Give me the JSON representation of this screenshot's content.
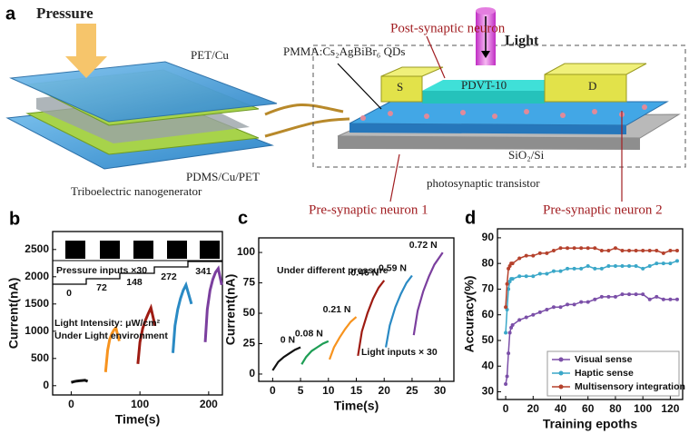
{
  "diagram": {
    "label": "a",
    "pressure": "Pressure",
    "top_layer": "PET/Cu",
    "bottom_layer": "PDMS/Cu/PET",
    "teng": "Triboelectric nanogenerator",
    "post_neuron": "Post-synaptic neuron",
    "light": "Light",
    "qds": "PMMA:Cs₂AgBiBr₆ QDs",
    "source": "S",
    "drain": "D",
    "channel": "PDVT-10",
    "substrate": "SiO₂/Si",
    "transistor": "photosynaptic transistor",
    "pre_neuron_1": "Pre-synaptic neuron 1",
    "pre_neuron_2": "Pre-synaptic neuron 2"
  },
  "chart_data": [
    {
      "type": "line",
      "label": "b",
      "xlabel": "Time(s)",
      "ylabel": "Current(nA)",
      "xlim": [
        -27,
        220
      ],
      "xticks": [
        0,
        100,
        200
      ],
      "ylim": [
        -170,
        2830
      ],
      "yticks": [
        0,
        500,
        1000,
        1500,
        2000,
        2500
      ],
      "annotations": [
        "Pressure inputs ×30",
        "Light Intensity: μW/cm²",
        "Under Light environment"
      ],
      "pressure_labels": [
        "0",
        "72",
        "148",
        "272",
        "341"
      ],
      "series": [
        {
          "color": "#111111",
          "x": [
            0,
            4,
            8,
            12,
            16,
            20,
            24
          ],
          "values": [
            60,
            75,
            85,
            90,
            95,
            100,
            80
          ]
        },
        {
          "color": "#f7931e",
          "x": [
            50,
            53,
            56,
            59,
            62,
            65,
            70
          ],
          "values": [
            250,
            650,
            850,
            950,
            1020,
            1060,
            820
          ]
        },
        {
          "color": "#9e1b12",
          "x": [
            97,
            100,
            104,
            108,
            112,
            116,
            122
          ],
          "values": [
            400,
            800,
            1050,
            1200,
            1320,
            1430,
            1100
          ]
        },
        {
          "color": "#2a8ac4",
          "x": [
            148,
            151,
            155,
            159,
            163,
            167,
            175
          ],
          "values": [
            600,
            1100,
            1400,
            1600,
            1750,
            1850,
            1500
          ]
        },
        {
          "color": "#7b3f9e",
          "x": [
            195,
            198,
            202,
            206,
            210,
            214,
            219
          ],
          "values": [
            800,
            1400,
            1750,
            1950,
            2080,
            2150,
            1850
          ]
        }
      ]
    },
    {
      "type": "line",
      "label": "c",
      "xlabel": "Time(s)",
      "ylabel": "Current(nA)",
      "xlim": [
        -2.5,
        32.5
      ],
      "xticks": [
        0,
        5,
        10,
        15,
        20,
        25,
        30
      ],
      "ylim": [
        -6,
        112
      ],
      "yticks": [
        0,
        25,
        50,
        75,
        100
      ],
      "annotations": [
        "Under different pressure",
        "Light inputs × 30"
      ],
      "series": [
        {
          "name": "0 N",
          "color": "#111111",
          "x": [
            0,
            1,
            2,
            3,
            4,
            5
          ],
          "values": [
            3,
            10,
            14,
            17,
            20,
            22
          ]
        },
        {
          "name": "0.08 N",
          "color": "#1e9e55",
          "x": [
            5.2,
            6,
            7,
            8,
            9,
            10
          ],
          "values": [
            8,
            14,
            19,
            22,
            25,
            27
          ]
        },
        {
          "name": "0.21 N",
          "color": "#f7931e",
          "x": [
            10.2,
            11,
            12,
            13,
            14,
            15
          ],
          "values": [
            12,
            22,
            30,
            37,
            43,
            47
          ]
        },
        {
          "name": "0.46 N",
          "color": "#9e1b12",
          "x": [
            15.3,
            16,
            17,
            18,
            19,
            20
          ],
          "values": [
            15,
            35,
            50,
            62,
            71,
            77
          ]
        },
        {
          "name": "0.59 N",
          "color": "#2a8ac4",
          "x": [
            20.3,
            21,
            22,
            23,
            24,
            25
          ],
          "values": [
            22,
            40,
            55,
            66,
            75,
            81
          ]
        },
        {
          "name": "0.72 N",
          "color": "#7b3f9e",
          "x": [
            25.3,
            26,
            27,
            28,
            29,
            30.5
          ],
          "values": [
            32,
            52,
            68,
            80,
            90,
            100
          ]
        }
      ]
    },
    {
      "type": "line",
      "label": "d",
      "xlabel": "Training epoths",
      "ylabel": "Accuracy(%)",
      "xlim": [
        -6,
        129
      ],
      "xticks": [
        0,
        20,
        40,
        60,
        80,
        100,
        120
      ],
      "ylim": [
        27,
        93.5
      ],
      "yticks": [
        30,
        40,
        50,
        60,
        70,
        80,
        90
      ],
      "legend": "lower right",
      "markers": true,
      "series": [
        {
          "name": "Visual sense",
          "color": "#7b4fa8",
          "x": [
            0,
            1,
            2,
            3,
            4,
            5,
            10,
            15,
            20,
            25,
            30,
            35,
            40,
            45,
            50,
            55,
            60,
            65,
            70,
            75,
            80,
            85,
            90,
            95,
            100,
            105,
            110,
            115,
            120,
            125
          ],
          "values": [
            33,
            36,
            45,
            53,
            55,
            56,
            58,
            59,
            60,
            61,
            62,
            63,
            63,
            64,
            64,
            65,
            65,
            66,
            67,
            67,
            67,
            68,
            68,
            68,
            68,
            66,
            67,
            66,
            66,
            66
          ]
        },
        {
          "name": "Haptic sense",
          "color": "#3aa7c8",
          "x": [
            0,
            1,
            2,
            3,
            4,
            5,
            10,
            15,
            20,
            25,
            30,
            35,
            40,
            45,
            50,
            55,
            60,
            65,
            70,
            75,
            80,
            85,
            90,
            95,
            100,
            105,
            110,
            115,
            120,
            125
          ],
          "values": [
            53,
            62,
            70,
            73,
            74,
            74,
            75,
            75,
            75,
            76,
            76,
            77,
            77,
            78,
            78,
            78,
            79,
            78,
            78,
            79,
            79,
            79,
            79,
            79,
            78,
            79,
            80,
            80,
            80,
            81
          ]
        },
        {
          "name": "Multisensory integration",
          "color": "#b5412c",
          "x": [
            0,
            1,
            2,
            3,
            4,
            5,
            10,
            15,
            20,
            25,
            30,
            35,
            40,
            45,
            50,
            55,
            60,
            65,
            70,
            75,
            80,
            85,
            90,
            95,
            100,
            105,
            110,
            115,
            120,
            125
          ],
          "values": [
            63,
            72,
            78,
            79,
            80,
            80,
            82,
            83,
            83,
            84,
            84,
            85,
            86,
            86,
            86,
            86,
            86,
            86,
            85,
            85,
            86,
            85,
            85,
            85,
            85,
            85,
            85,
            84,
            85,
            85
          ]
        }
      ]
    }
  ]
}
